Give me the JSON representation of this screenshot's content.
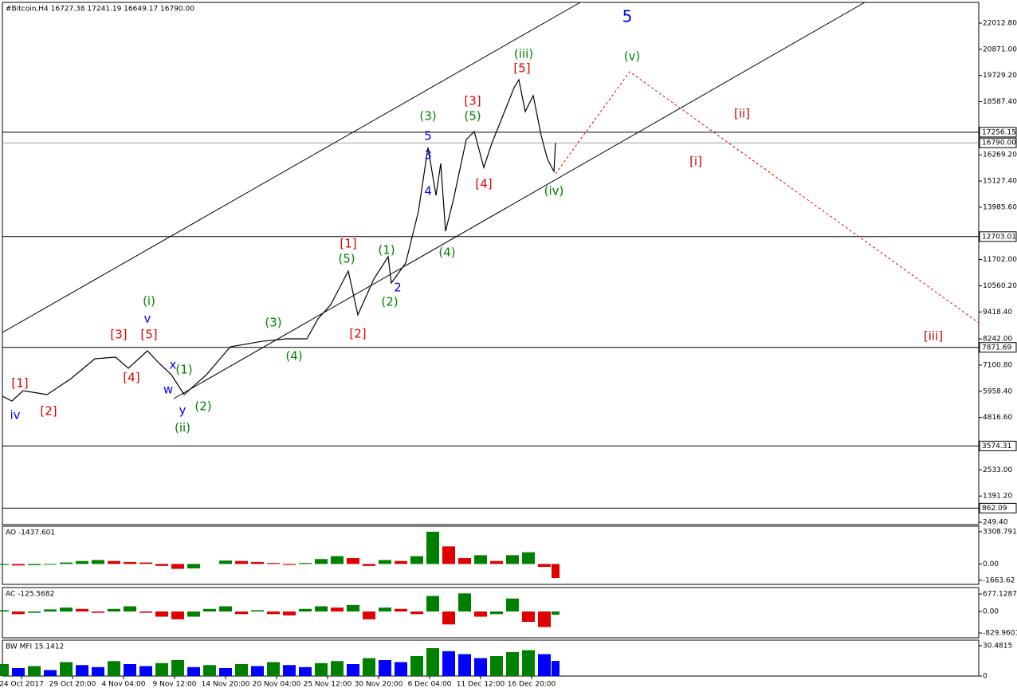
{
  "chart_data": [
    {
      "type": "line",
      "title": "#Bitcoin,H4  16727.38 17241.19 16649.17 16790.00",
      "color": "#000000",
      "x": [
        0,
        6,
        13,
        28,
        43,
        58,
        71,
        79,
        91,
        98,
        106,
        114,
        128,
        143,
        163,
        178,
        191,
        198,
        206,
        217,
        223,
        233,
        242,
        244,
        253,
        261,
        267,
        272,
        275,
        278,
        283,
        291,
        296,
        302,
        307,
        313,
        321,
        324,
        328,
        333,
        338,
        342,
        346,
        347
      ],
      "values": [
        5742,
        5534,
        5985,
        5812,
        6507,
        7376,
        7446,
        6960,
        7724,
        7203,
        6680,
        5812,
        6680,
        7897,
        8140,
        8245,
        8245,
        9115,
        9740,
        11200,
        9289,
        10853,
        11826,
        10679,
        11548,
        13808,
        16589,
        14503,
        15893,
        12939,
        14329,
        16937,
        17285,
        15720,
        16763,
        17806,
        19197,
        19545,
        18154,
        18849,
        17111,
        16067,
        15546,
        16790
      ],
      "xlim": [
        0,
        612.5
      ],
      "ylim": [
        145,
        22917
      ],
      "xticks": [
        {
          "value": 12,
          "label": "24 Oct 2017"
        },
        {
          "value": 44,
          "label": "29 Oct 20:00"
        },
        {
          "value": 76,
          "label": "4 Nov 04:00"
        },
        {
          "value": 108,
          "label": "9 Nov 12:00"
        },
        {
          "value": 140,
          "label": "14 Nov 20:00"
        },
        {
          "value": 172,
          "label": "20 Nov 04:00"
        },
        {
          "value": 204,
          "label": "25 Nov 12:00"
        },
        {
          "value": 236,
          "label": "30 Nov 20:00"
        },
        {
          "value": 268,
          "label": "6 Dec 04:00"
        },
        {
          "value": 300,
          "label": "11 Dec 12:00"
        },
        {
          "value": 332,
          "label": "16 Dec 20:00"
        }
      ],
      "yticks": [
        {
          "value": 22012.8,
          "label": "22012.80"
        },
        {
          "value": 20871,
          "label": "20871.00"
        },
        {
          "value": 19729.2,
          "label": "19729.20"
        },
        {
          "value": 18587.4,
          "label": "18587.40"
        },
        {
          "value": 16269.2,
          "label": "16269.20"
        },
        {
          "value": 15127.4,
          "label": "15127.40"
        },
        {
          "value": 13985.6,
          "label": "13985.60"
        },
        {
          "value": 11702,
          "label": "11702.00"
        },
        {
          "value": 10560.2,
          "label": "10560.20"
        },
        {
          "value": 9418.4,
          "label": "9418.40"
        },
        {
          "value": 8242,
          "label": "8242.00"
        },
        {
          "value": 7100.8,
          "label": "7100.80"
        },
        {
          "value": 5958.4,
          "label": "5958.40"
        },
        {
          "value": 4816.6,
          "label": "4816.60"
        },
        {
          "value": 2533,
          "label": "2533.00"
        },
        {
          "value": 1391.2,
          "label": "1391.20"
        },
        {
          "value": 249.4,
          "label": "249.40"
        }
      ],
      "hlines": [
        {
          "value": 17256.15,
          "color": "#000000"
        },
        {
          "value": {
            "value": 16790,
            "label": "16790.00"
          },
          "color": "#a0a0a0"
        },
        {
          "value": 12703.01,
          "color": "#000000"
        },
        {
          "value": 7871.69,
          "color": "#000000"
        },
        {
          "value": 3574.31,
          "color": "#000000"
        },
        {
          "value": 862.09,
          "color": "#000000"
        }
      ],
      "lines": [
        {
          "x": [
            0,
            362.5
          ],
          "y": [
            8523,
            22917
          ],
          "color": "#000000",
          "dash": false
        },
        {
          "x": [
            107.5,
            541
          ],
          "y": [
            5638,
            22917
          ],
          "color": "#000000",
          "dash": false
        },
        {
          "x": [
            347,
            393.5,
            612.5
          ],
          "y": [
            15442,
            19892,
            8940
          ],
          "color": "#e00000",
          "dash": true
        }
      ],
      "annotations": [
        {
          "text": "[1]",
          "x": 11,
          "y": 6298,
          "color": "#e00000"
        },
        {
          "text": "iv",
          "x": 8,
          "y": 4908,
          "color": "#0000ff"
        },
        {
          "text": "[2]",
          "x": 29,
          "y": 5082,
          "color": "#e00000"
        },
        {
          "text": "[3]",
          "x": 73,
          "y": 8419,
          "color": "#e00000"
        },
        {
          "text": "[4]",
          "x": 81,
          "y": 6541,
          "color": "#e00000"
        },
        {
          "text": "[5]",
          "x": 92,
          "y": 8419,
          "color": "#e00000"
        },
        {
          "text": "v",
          "x": 91,
          "y": 9115,
          "color": "#0000ff"
        },
        {
          "text": "(i)",
          "x": 92,
          "y": 9880,
          "color": "#008000"
        },
        {
          "text": "x",
          "x": 107,
          "y": 7098,
          "color": "#0000ff"
        },
        {
          "text": "w",
          "x": 104,
          "y": 6020,
          "color": "#0000ff"
        },
        {
          "text": "(1)",
          "x": 114,
          "y": 6889,
          "color": "#008000"
        },
        {
          "text": "y",
          "x": 113,
          "y": 5117,
          "color": "#0000ff"
        },
        {
          "text": "(2)",
          "x": 126,
          "y": 5290,
          "color": "#008000"
        },
        {
          "text": "(ii)",
          "x": 113,
          "y": 4351,
          "color": "#008000"
        },
        {
          "text": "(3)",
          "x": 170,
          "y": 8941,
          "color": "#008000"
        },
        {
          "text": "(4)",
          "x": 183,
          "y": 7480,
          "color": "#008000"
        },
        {
          "text": "[1]",
          "x": 217,
          "y": 12382,
          "color": "#e00000"
        },
        {
          "text": "(5)",
          "x": 216,
          "y": 11722,
          "color": "#008000"
        },
        {
          "text": "[2]",
          "x": 223,
          "y": 8454,
          "color": "#e00000"
        },
        {
          "text": "(1)",
          "x": 241,
          "y": 12104,
          "color": "#008000"
        },
        {
          "text": "2",
          "x": 248,
          "y": 10470,
          "color": "#0000ff"
        },
        {
          "text": "(2)",
          "x": 243,
          "y": 9845,
          "color": "#008000"
        },
        {
          "text": "(3)",
          "x": 267,
          "y": 17945,
          "color": "#008000"
        },
        {
          "text": "5",
          "x": 267,
          "y": 17076,
          "color": "#0000ff"
        },
        {
          "text": "3",
          "x": 267,
          "y": 16242,
          "color": "#0000ff"
        },
        {
          "text": "4",
          "x": 267,
          "y": 14677,
          "color": "#0000ff"
        },
        {
          "text": "(4)",
          "x": 279,
          "y": 11999,
          "color": "#008000"
        },
        {
          "text": "[3]",
          "x": 295,
          "y": 18606,
          "color": "#e00000"
        },
        {
          "text": "(5)",
          "x": 295,
          "y": 17945,
          "color": "#008000"
        },
        {
          "text": "[4]",
          "x": 302,
          "y": 14990,
          "color": "#e00000"
        },
        {
          "text": "[5]",
          "x": 326,
          "y": 20031,
          "color": "#e00000"
        },
        {
          "text": "(iii)",
          "x": 327,
          "y": 20657,
          "color": "#008000"
        },
        {
          "text": "(iv)",
          "x": 346,
          "y": 14677,
          "color": "#008000"
        },
        {
          "text": "(v)",
          "x": 395,
          "y": 20552,
          "color": "#008000"
        },
        {
          "text": "5",
          "x": 392,
          "y": 22256,
          "color": "#0000ff"
        },
        {
          "text": "[ii]",
          "x": 464,
          "y": 18049,
          "color": "#cc0000"
        },
        {
          "text": "[i]",
          "x": 435,
          "y": 15963,
          "color": "#cc0000"
        },
        {
          "text": "[iii]",
          "x": 584,
          "y": 8350,
          "color": "#cc0000"
        }
      ]
    },
    {
      "type": "bar",
      "title": "AO -1437.601",
      "up_color": "#008000",
      "down_color": "#e00000",
      "x": [
        0,
        10,
        20,
        30,
        40,
        50,
        60,
        70,
        80,
        90,
        100,
        110,
        120,
        130,
        140,
        150,
        160,
        170,
        180,
        190,
        200,
        210,
        220,
        230,
        240,
        250,
        260,
        270,
        280,
        290,
        300,
        310,
        320,
        330,
        340,
        347
      ],
      "values": [
        -100,
        -150,
        -120,
        -80,
        150,
        300,
        400,
        300,
        200,
        150,
        -200,
        -500,
        -450,
        0,
        350,
        300,
        200,
        100,
        -100,
        100,
        500,
        800,
        600,
        -200,
        400,
        300,
        800,
        3300,
        1800,
        600,
        900,
        300,
        900,
        1200,
        -300,
        -1437.601
      ],
      "xlim": [
        0,
        612.5
      ],
      "ylim": [
        -2090,
        3870
      ],
      "yticks": [
        3308.791,
        {
          "value": 0,
          "label": "0.00"
        },
        -1663.62
      ]
    },
    {
      "type": "bar",
      "title": "AC -125.5682",
      "up_color": "#008000",
      "down_color": "#e00000",
      "x": [
        0,
        10,
        20,
        30,
        40,
        50,
        60,
        70,
        80,
        90,
        100,
        110,
        120,
        130,
        140,
        150,
        160,
        170,
        180,
        190,
        200,
        210,
        220,
        230,
        240,
        250,
        260,
        270,
        280,
        290,
        300,
        310,
        320,
        330,
        340,
        347
      ],
      "values": [
        50,
        -100,
        -50,
        80,
        150,
        100,
        -50,
        100,
        200,
        -50,
        -200,
        -300,
        -200,
        100,
        200,
        -100,
        50,
        -100,
        -150,
        100,
        200,
        150,
        250,
        -300,
        150,
        100,
        -100,
        600,
        -500,
        700,
        -200,
        -100,
        500,
        -400,
        -600,
        -125.5682
      ],
      "xlim": [
        0,
        612.5
      ],
      "ylim": [
        -1016,
        925
      ],
      "yticks": [
        677.1287,
        {
          "value": 0,
          "label": "0.00"
        },
        -829.9601
      ]
    },
    {
      "type": "bar",
      "title": "BW MFI 15.1412",
      "up_color": "#008000",
      "down_color": "#0000ff",
      "x": [
        0,
        10,
        20,
        30,
        40,
        50,
        60,
        70,
        80,
        90,
        100,
        110,
        120,
        130,
        140,
        150,
        160,
        170,
        180,
        190,
        200,
        210,
        220,
        230,
        240,
        250,
        260,
        270,
        280,
        290,
        300,
        310,
        320,
        330,
        340,
        347
      ],
      "values": [
        12,
        8,
        10,
        6,
        14,
        11,
        9,
        15,
        12,
        10,
        13,
        16,
        9,
        11,
        8,
        12,
        10,
        14,
        11,
        9,
        13,
        15,
        12,
        18,
        16,
        14,
        20,
        28,
        25,
        22,
        18,
        20,
        24,
        26,
        22,
        15.1412
      ],
      "xlim": [
        0,
        612.5
      ],
      "ylim": [
        0,
        36
      ],
      "yticks": [
        30.4815,
        0
      ]
    }
  ]
}
